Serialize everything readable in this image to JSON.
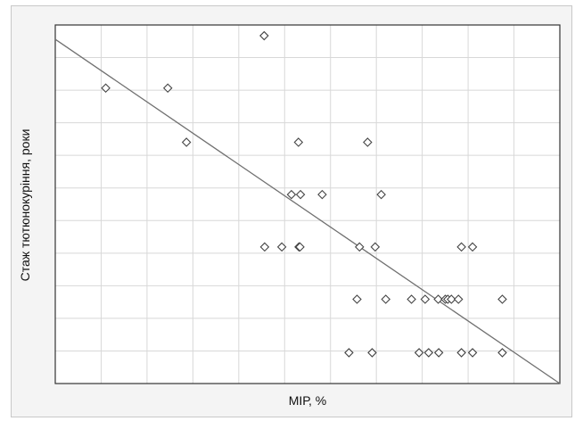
{
  "chart_data": {
    "type": "scatter",
    "title": "",
    "xlabel": "МІР, %",
    "ylabel": "Стаж тютюнокуріння, роки",
    "xlim": [
      0,
      100
    ],
    "ylim": [
      0,
      100
    ],
    "grid": true,
    "tick_labels_visible": false,
    "marker": "diamond-open",
    "colors": {
      "grid": "#d8d8d8",
      "marker": "#444444",
      "trend": "#707070",
      "axis": "#333333"
    },
    "trendline": {
      "type": "linear",
      "x": [
        0,
        100
      ],
      "y": [
        96,
        0
      ]
    },
    "points": [
      {
        "x": 10.0,
        "y": 82.4
      },
      {
        "x": 22.3,
        "y": 82.4
      },
      {
        "x": 41.4,
        "y": 97.0
      },
      {
        "x": 26.0,
        "y": 67.3
      },
      {
        "x": 48.2,
        "y": 67.3
      },
      {
        "x": 61.9,
        "y": 67.3
      },
      {
        "x": 46.8,
        "y": 52.7
      },
      {
        "x": 48.6,
        "y": 52.7
      },
      {
        "x": 52.9,
        "y": 52.7
      },
      {
        "x": 64.6,
        "y": 52.7
      },
      {
        "x": 41.5,
        "y": 38.1
      },
      {
        "x": 44.9,
        "y": 38.1
      },
      {
        "x": 48.3,
        "y": 38.1
      },
      {
        "x": 48.5,
        "y": 38.1
      },
      {
        "x": 60.3,
        "y": 38.1
      },
      {
        "x": 63.4,
        "y": 38.1
      },
      {
        "x": 80.5,
        "y": 38.1
      },
      {
        "x": 82.7,
        "y": 38.1
      },
      {
        "x": 59.8,
        "y": 23.5
      },
      {
        "x": 65.5,
        "y": 23.5
      },
      {
        "x": 70.6,
        "y": 23.5
      },
      {
        "x": 73.3,
        "y": 23.5
      },
      {
        "x": 75.9,
        "y": 23.5
      },
      {
        "x": 77.3,
        "y": 23.5
      },
      {
        "x": 77.8,
        "y": 23.5
      },
      {
        "x": 78.5,
        "y": 23.5
      },
      {
        "x": 79.9,
        "y": 23.5
      },
      {
        "x": 88.6,
        "y": 23.5
      },
      {
        "x": 58.2,
        "y": 8.6
      },
      {
        "x": 62.8,
        "y": 8.6
      },
      {
        "x": 72.1,
        "y": 8.6
      },
      {
        "x": 74.0,
        "y": 8.6
      },
      {
        "x": 76.0,
        "y": 8.6
      },
      {
        "x": 80.5,
        "y": 8.6
      },
      {
        "x": 82.7,
        "y": 8.6
      },
      {
        "x": 88.6,
        "y": 8.6
      }
    ]
  }
}
